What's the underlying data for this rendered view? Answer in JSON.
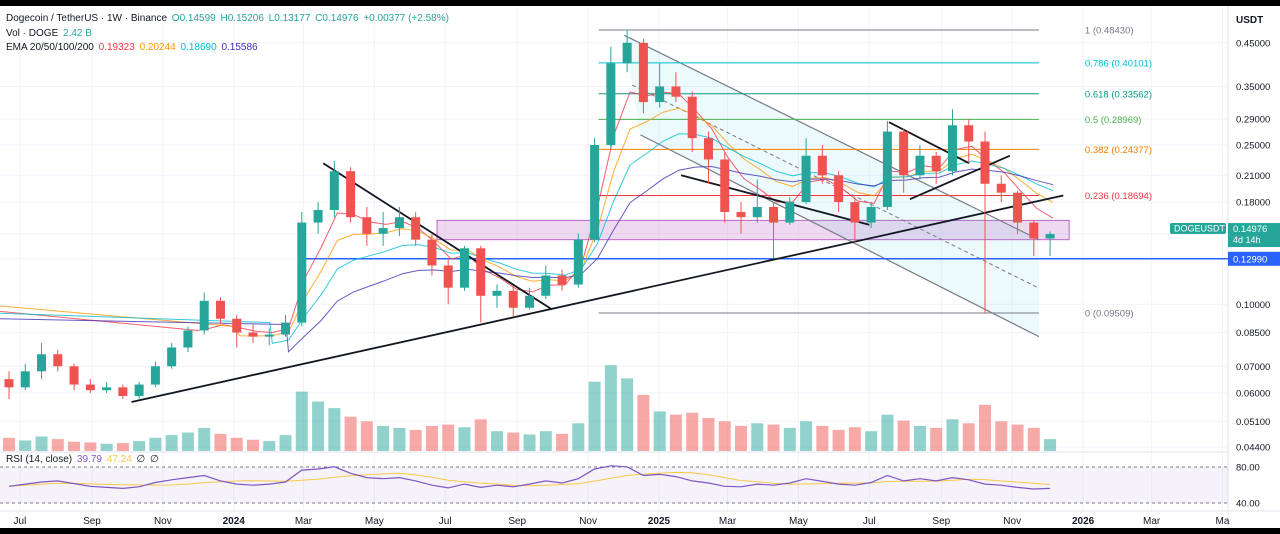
{
  "header": {
    "symbol": "Dogecoin / TetherUS · 1W · Binance",
    "open": "O0.14599",
    "high": "H0.15206",
    "low": "L0.13177",
    "close": "C0.14976",
    "change": "+0.00377 (+2.58%)",
    "vol_label": "Vol · DOGE",
    "vol_value": "2.42 B",
    "ema_label": "EMA 20/50/100/200",
    "ema_values": [
      "0.19323",
      "0.20244",
      "0.18690",
      "0.15586"
    ],
    "rsi_label": "RSI (14, close)",
    "rsi_values": [
      "39.79",
      "47.24",
      "∅",
      "∅"
    ]
  },
  "axis": {
    "currency": "USDT",
    "price_ticks": [
      "0.45000",
      "0.35000",
      "0.29000",
      "0.25000",
      "0.21000",
      "0.18000",
      "0.15000",
      "0.12990",
      "0.10000",
      "0.08500",
      "0.07000",
      "0.06000",
      "0.05100",
      "0.04400"
    ],
    "rsi_ticks": [
      "80.00",
      "40.00"
    ],
    "time_ticks": [
      "Jul",
      "Sep",
      "Nov",
      "2024",
      "Mar",
      "May",
      "Jul",
      "Sep",
      "Nov",
      "2025",
      "Mar",
      "May",
      "Jul",
      "Sep",
      "Nov",
      "2026",
      "Mar",
      "Ma"
    ]
  },
  "fib_levels": [
    {
      "label": "1 (0.48430)",
      "value": 0.4843,
      "color": "#787b86"
    },
    {
      "label": "0.786 (0.40101)",
      "value": 0.40101,
      "color": "#00bcd4"
    },
    {
      "label": "0.618 (0.33562)",
      "value": 0.33562,
      "color": "#089981"
    },
    {
      "label": "0.5 (0.28969)",
      "value": 0.28969,
      "color": "#4caf50"
    },
    {
      "label": "0.382 (0.24377)",
      "value": 0.24377,
      "color": "#f57c00"
    },
    {
      "label": "0.236 (0.18694)",
      "value": 0.18694,
      "color": "#f23645"
    },
    {
      "label": "0 (0.09509)",
      "value": 0.09509,
      "color": "#787b86"
    }
  ],
  "price_labels": {
    "symbol_tag": "DOGEUSDT",
    "last_price": "0.14976",
    "countdown": "4d 14h",
    "support": "0.12990"
  },
  "colors": {
    "up": "#26a69a",
    "down": "#ef5350",
    "support": "#2962ff",
    "ema20": "#f23645",
    "ema50": "#ff9800",
    "ema100": "#00bcd4",
    "ema200": "#3f2fb5"
  },
  "chart_data": {
    "type": "candlestick",
    "title": "Dogecoin / TetherUS · 1W · Binance",
    "y_scale": "log",
    "ylim": [
      0.044,
      0.5
    ],
    "x_range": [
      "2023-06-19",
      "2026-05-04"
    ],
    "candles": [
      {
        "date": "2023-06-19",
        "o": 0.065,
        "h": 0.068,
        "l": 0.058,
        "c": 0.062
      },
      {
        "date": "2023-07-03",
        "o": 0.062,
        "h": 0.071,
        "l": 0.061,
        "c": 0.068
      },
      {
        "date": "2023-07-17",
        "o": 0.068,
        "h": 0.08,
        "l": 0.065,
        "c": 0.075
      },
      {
        "date": "2023-07-31",
        "o": 0.075,
        "h": 0.077,
        "l": 0.068,
        "c": 0.07
      },
      {
        "date": "2023-08-14",
        "o": 0.07,
        "h": 0.071,
        "l": 0.061,
        "c": 0.063
      },
      {
        "date": "2023-08-28",
        "o": 0.063,
        "h": 0.065,
        "l": 0.06,
        "c": 0.061
      },
      {
        "date": "2023-09-11",
        "o": 0.061,
        "h": 0.064,
        "l": 0.06,
        "c": 0.062
      },
      {
        "date": "2023-09-25",
        "o": 0.062,
        "h": 0.063,
        "l": 0.058,
        "c": 0.059
      },
      {
        "date": "2023-10-09",
        "o": 0.059,
        "h": 0.064,
        "l": 0.058,
        "c": 0.063
      },
      {
        "date": "2023-10-23",
        "o": 0.063,
        "h": 0.072,
        "l": 0.062,
        "c": 0.07
      },
      {
        "date": "2023-11-06",
        "o": 0.07,
        "h": 0.08,
        "l": 0.069,
        "c": 0.078
      },
      {
        "date": "2023-11-20",
        "o": 0.078,
        "h": 0.088,
        "l": 0.076,
        "c": 0.086
      },
      {
        "date": "2023-12-04",
        "o": 0.086,
        "h": 0.107,
        "l": 0.084,
        "c": 0.102
      },
      {
        "date": "2023-12-18",
        "o": 0.102,
        "h": 0.104,
        "l": 0.089,
        "c": 0.092
      },
      {
        "date": "2024-01-01",
        "o": 0.092,
        "h": 0.094,
        "l": 0.078,
        "c": 0.085
      },
      {
        "date": "2024-01-15",
        "o": 0.085,
        "h": 0.089,
        "l": 0.08,
        "c": 0.083
      },
      {
        "date": "2024-01-29",
        "o": 0.083,
        "h": 0.087,
        "l": 0.079,
        "c": 0.084
      },
      {
        "date": "2024-02-12",
        "o": 0.084,
        "h": 0.094,
        "l": 0.083,
        "c": 0.09
      },
      {
        "date": "2024-02-26",
        "o": 0.09,
        "h": 0.17,
        "l": 0.088,
        "c": 0.16
      },
      {
        "date": "2024-03-11",
        "o": 0.16,
        "h": 0.18,
        "l": 0.15,
        "c": 0.172
      },
      {
        "date": "2024-03-25",
        "o": 0.172,
        "h": 0.228,
        "l": 0.165,
        "c": 0.215
      },
      {
        "date": "2024-04-08",
        "o": 0.215,
        "h": 0.22,
        "l": 0.16,
        "c": 0.165
      },
      {
        "date": "2024-04-22",
        "o": 0.165,
        "h": 0.175,
        "l": 0.14,
        "c": 0.15
      },
      {
        "date": "2024-05-06",
        "o": 0.15,
        "h": 0.17,
        "l": 0.14,
        "c": 0.155
      },
      {
        "date": "2024-05-20",
        "o": 0.155,
        "h": 0.175,
        "l": 0.148,
        "c": 0.165
      },
      {
        "date": "2024-06-03",
        "o": 0.165,
        "h": 0.17,
        "l": 0.14,
        "c": 0.145
      },
      {
        "date": "2024-06-17",
        "o": 0.145,
        "h": 0.15,
        "l": 0.118,
        "c": 0.125
      },
      {
        "date": "2024-07-01",
        "o": 0.125,
        "h": 0.13,
        "l": 0.1,
        "c": 0.11
      },
      {
        "date": "2024-07-15",
        "o": 0.11,
        "h": 0.14,
        "l": 0.108,
        "c": 0.138
      },
      {
        "date": "2024-07-29",
        "o": 0.138,
        "h": 0.14,
        "l": 0.09,
        "c": 0.105
      },
      {
        "date": "2024-08-12",
        "o": 0.105,
        "h": 0.112,
        "l": 0.098,
        "c": 0.108
      },
      {
        "date": "2024-08-26",
        "o": 0.108,
        "h": 0.111,
        "l": 0.093,
        "c": 0.098
      },
      {
        "date": "2024-09-09",
        "o": 0.098,
        "h": 0.11,
        "l": 0.097,
        "c": 0.105
      },
      {
        "date": "2024-09-23",
        "o": 0.105,
        "h": 0.125,
        "l": 0.103,
        "c": 0.118
      },
      {
        "date": "2024-10-07",
        "o": 0.118,
        "h": 0.122,
        "l": 0.108,
        "c": 0.112
      },
      {
        "date": "2024-10-21",
        "o": 0.112,
        "h": 0.15,
        "l": 0.11,
        "c": 0.145
      },
      {
        "date": "2024-11-04",
        "o": 0.145,
        "h": 0.26,
        "l": 0.143,
        "c": 0.25
      },
      {
        "date": "2024-11-18",
        "o": 0.25,
        "h": 0.44,
        "l": 0.245,
        "c": 0.4
      },
      {
        "date": "2024-12-02",
        "o": 0.4,
        "h": 0.484,
        "l": 0.38,
        "c": 0.45
      },
      {
        "date": "2024-12-16",
        "o": 0.45,
        "h": 0.46,
        "l": 0.3,
        "c": 0.32
      },
      {
        "date": "2024-12-30",
        "o": 0.32,
        "h": 0.4,
        "l": 0.31,
        "c": 0.35
      },
      {
        "date": "2025-01-13",
        "o": 0.35,
        "h": 0.38,
        "l": 0.32,
        "c": 0.33
      },
      {
        "date": "2025-01-27",
        "o": 0.33,
        "h": 0.34,
        "l": 0.24,
        "c": 0.26
      },
      {
        "date": "2025-02-10",
        "o": 0.26,
        "h": 0.27,
        "l": 0.2,
        "c": 0.23
      },
      {
        "date": "2025-02-24",
        "o": 0.23,
        "h": 0.24,
        "l": 0.16,
        "c": 0.17
      },
      {
        "date": "2025-03-10",
        "o": 0.17,
        "h": 0.18,
        "l": 0.15,
        "c": 0.165
      },
      {
        "date": "2025-03-24",
        "o": 0.165,
        "h": 0.205,
        "l": 0.16,
        "c": 0.175
      },
      {
        "date": "2025-04-07",
        "o": 0.175,
        "h": 0.18,
        "l": 0.13,
        "c": 0.16
      },
      {
        "date": "2025-04-21",
        "o": 0.16,
        "h": 0.185,
        "l": 0.158,
        "c": 0.18
      },
      {
        "date": "2025-05-05",
        "o": 0.18,
        "h": 0.26,
        "l": 0.178,
        "c": 0.235
      },
      {
        "date": "2025-05-19",
        "o": 0.235,
        "h": 0.25,
        "l": 0.2,
        "c": 0.21
      },
      {
        "date": "2025-06-02",
        "o": 0.21,
        "h": 0.215,
        "l": 0.17,
        "c": 0.18
      },
      {
        "date": "2025-06-16",
        "o": 0.18,
        "h": 0.185,
        "l": 0.142,
        "c": 0.16
      },
      {
        "date": "2025-06-30",
        "o": 0.16,
        "h": 0.18,
        "l": 0.155,
        "c": 0.175
      },
      {
        "date": "2025-07-14",
        "o": 0.175,
        "h": 0.287,
        "l": 0.172,
        "c": 0.27
      },
      {
        "date": "2025-07-28",
        "o": 0.27,
        "h": 0.275,
        "l": 0.19,
        "c": 0.21
      },
      {
        "date": "2025-08-11",
        "o": 0.21,
        "h": 0.25,
        "l": 0.205,
        "c": 0.235
      },
      {
        "date": "2025-08-25",
        "o": 0.235,
        "h": 0.24,
        "l": 0.2,
        "c": 0.215
      },
      {
        "date": "2025-09-08",
        "o": 0.215,
        "h": 0.307,
        "l": 0.21,
        "c": 0.28
      },
      {
        "date": "2025-09-22",
        "o": 0.28,
        "h": 0.29,
        "l": 0.225,
        "c": 0.255
      },
      {
        "date": "2025-10-06",
        "o": 0.255,
        "h": 0.27,
        "l": 0.095,
        "c": 0.2
      },
      {
        "date": "2025-10-20",
        "o": 0.2,
        "h": 0.21,
        "l": 0.18,
        "c": 0.19
      },
      {
        "date": "2025-11-03",
        "o": 0.19,
        "h": 0.192,
        "l": 0.15,
        "c": 0.16
      },
      {
        "date": "2025-11-17",
        "o": 0.16,
        "h": 0.162,
        "l": 0.132,
        "c": 0.146
      },
      {
        "date": "2025-12-01",
        "o": 0.146,
        "h": 0.152,
        "l": 0.132,
        "c": 0.14976
      }
    ],
    "volume_series_name": "Vol · DOGE",
    "rsi_series_name": "RSI (14, close)",
    "ema_series": [
      "EMA 20",
      "EMA 50",
      "EMA 100",
      "EMA 200"
    ],
    "support_level": 0.1299,
    "zone": [
      0.145,
      0.162
    ]
  }
}
